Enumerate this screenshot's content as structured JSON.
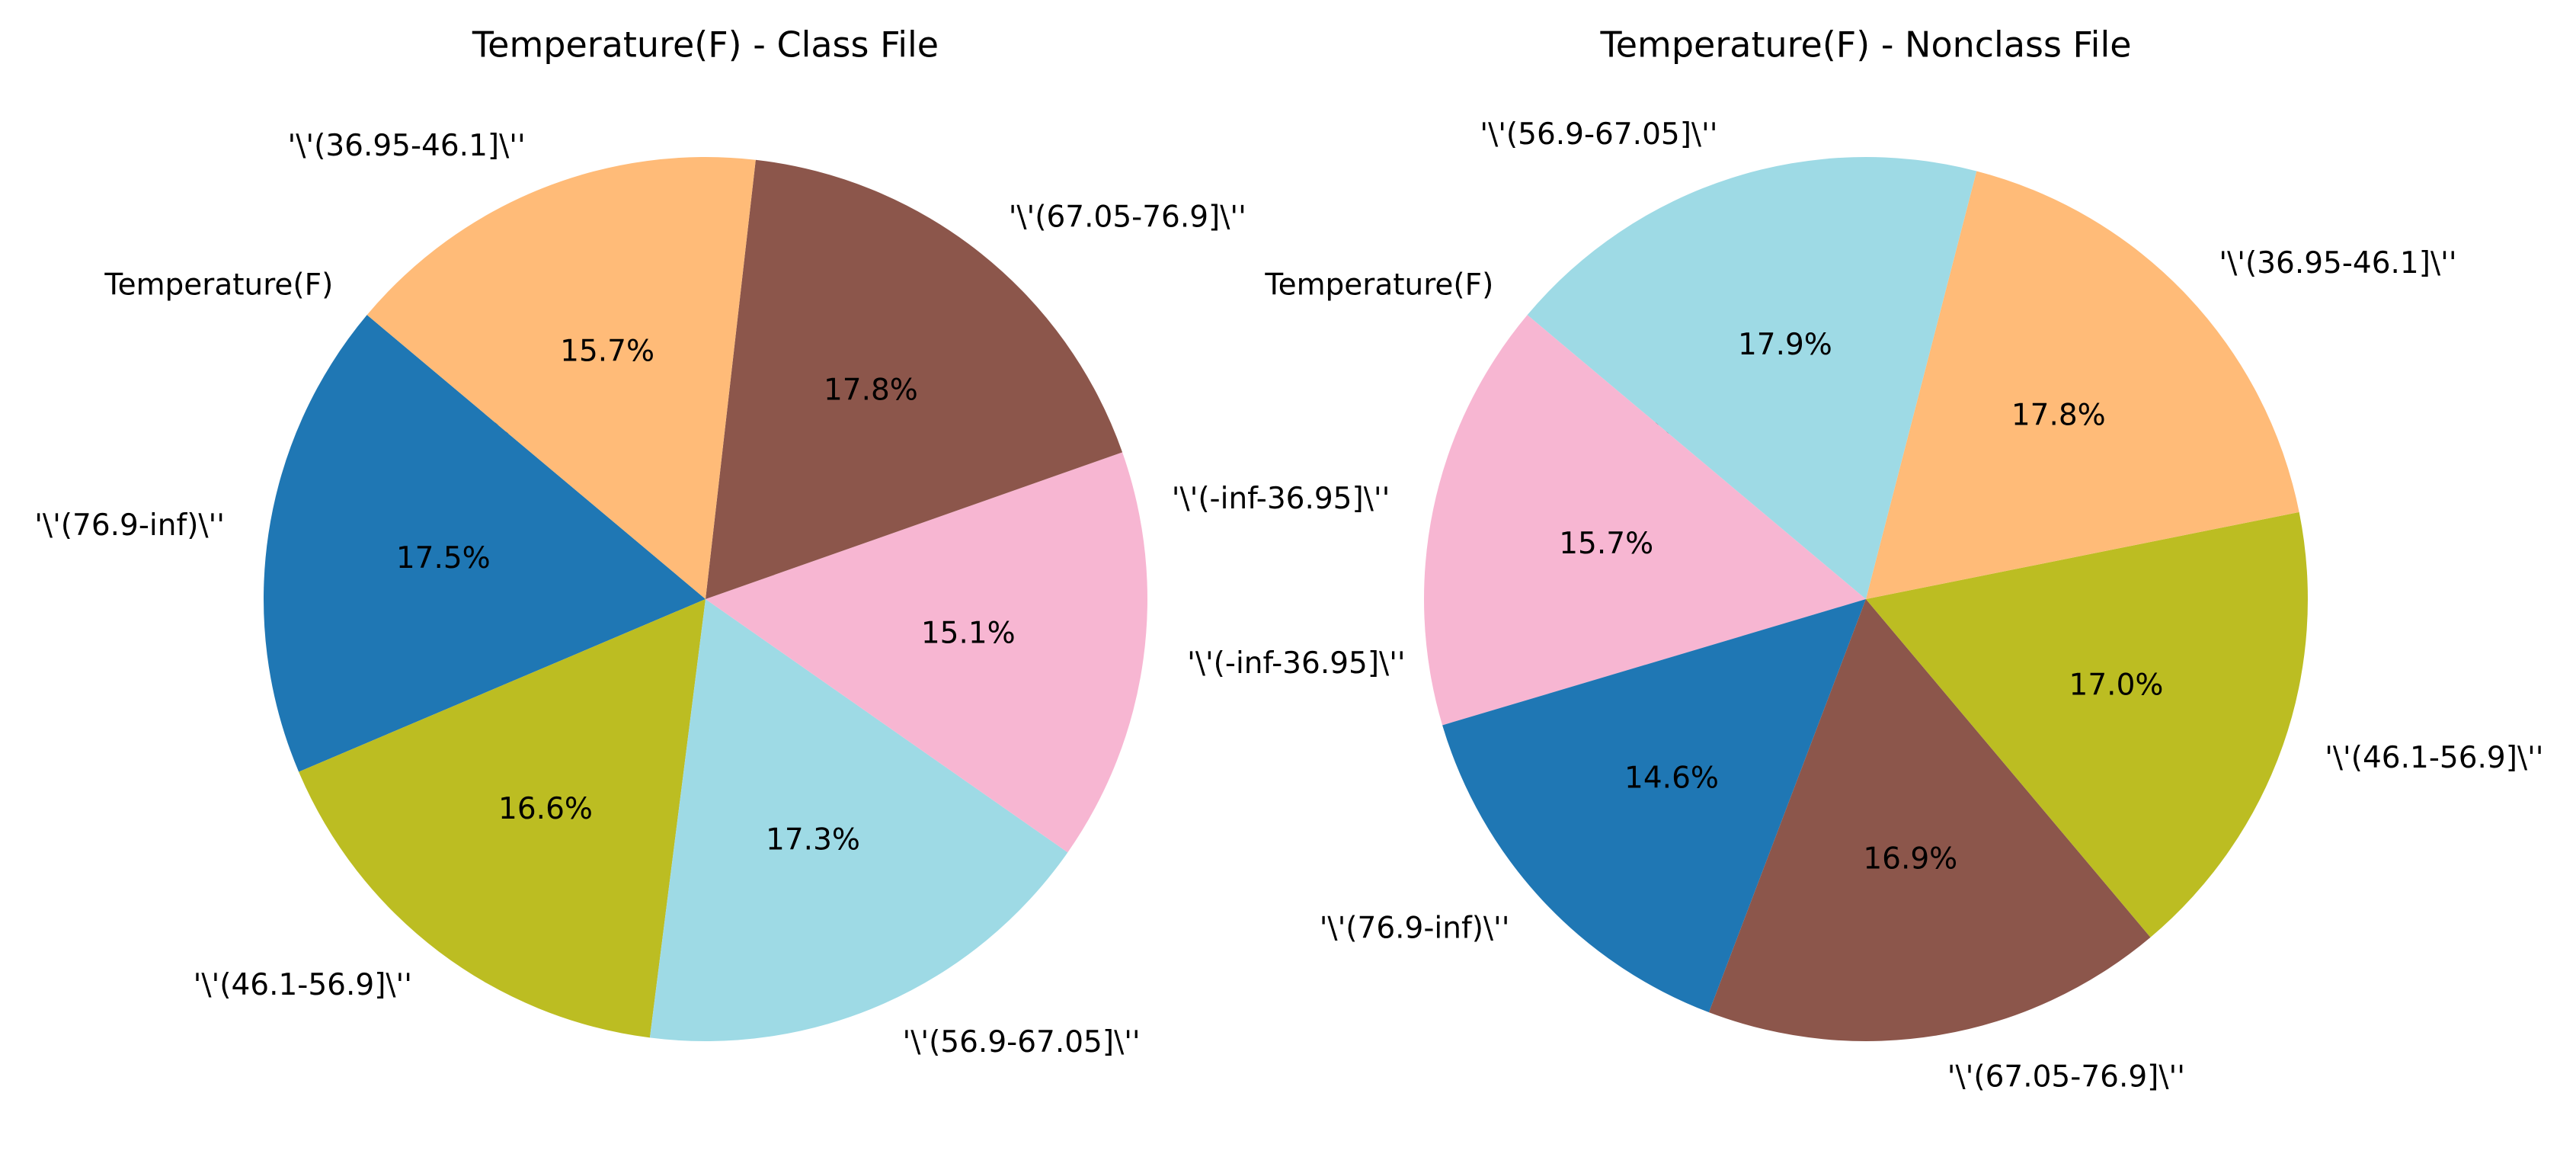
{
  "chart_data": [
    {
      "type": "pie",
      "title": "Temperature(F) - Class File",
      "start_angle_deg": 140,
      "direction": "counterclockwise",
      "slices": [
        {
          "label": "Temperature(F)",
          "value": 0.0,
          "pct_label": "0.0%",
          "color": "#9edae5"
        },
        {
          "label": "'\\'(76.9-inf)\\''",
          "value": 17.5,
          "pct_label": "17.5%",
          "color": "#1f77b4"
        },
        {
          "label": "'\\'(46.1-56.9]\\''",
          "value": 16.6,
          "pct_label": "16.6%",
          "color": "#bcbd22"
        },
        {
          "label": "'\\'(56.9-67.05]\\''",
          "value": 17.3,
          "pct_label": "17.3%",
          "color": "#9edae5"
        },
        {
          "label": "'\\'(-inf-36.95]\\''",
          "value": 15.1,
          "pct_label": "15.1%",
          "color": "#f7b6d2"
        },
        {
          "label": "'\\'(67.05-76.9]\\''",
          "value": 17.8,
          "pct_label": "17.8%",
          "color": "#8c564b"
        },
        {
          "label": "'\\'(36.95-46.1]\\''",
          "value": 15.7,
          "pct_label": "15.7%",
          "color": "#ffbb78"
        }
      ]
    },
    {
      "type": "pie",
      "title": "Temperature(F) - Nonclass File",
      "start_angle_deg": 140,
      "direction": "counterclockwise",
      "slices": [
        {
          "label": "Temperature(F)",
          "value": 0.0,
          "pct_label": "0.0%",
          "color": "#9edae5"
        },
        {
          "label": "'\\'(-inf-36.95]\\''",
          "value": 15.7,
          "pct_label": "15.7%",
          "color": "#f7b6d2"
        },
        {
          "label": "'\\'(76.9-inf)\\''",
          "value": 14.6,
          "pct_label": "14.6%",
          "color": "#1f77b4"
        },
        {
          "label": "'\\'(67.05-76.9]\\''",
          "value": 16.9,
          "pct_label": "16.9%",
          "color": "#8c564b"
        },
        {
          "label": "'\\'(46.1-56.9]\\''",
          "value": 17.0,
          "pct_label": "17.0%",
          "color": "#bcbd22"
        },
        {
          "label": "'\\'(36.95-46.1]\\''",
          "value": 17.8,
          "pct_label": "17.8%",
          "color": "#ffbb78"
        },
        {
          "label": "'\\'(56.9-67.05]\\''",
          "value": 17.9,
          "pct_label": "17.9%",
          "color": "#9edae5"
        }
      ]
    }
  ]
}
